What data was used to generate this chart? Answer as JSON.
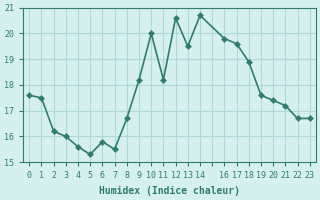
{
  "x": [
    0,
    1,
    2,
    3,
    4,
    5,
    6,
    7,
    8,
    9,
    10,
    11,
    12,
    13,
    14,
    16,
    17,
    18,
    19,
    20,
    21,
    22,
    23
  ],
  "y": [
    17.6,
    17.5,
    16.2,
    16.0,
    15.6,
    15.3,
    15.8,
    15.5,
    16.7,
    18.2,
    20.0,
    18.2,
    20.6,
    19.5,
    20.7,
    19.8,
    19.6,
    18.9,
    17.6,
    17.4,
    17.2,
    16.7,
    16.7
  ],
  "line_color": "#2e7d6e",
  "marker": "D",
  "marker_size": 3,
  "line_width": 1.2,
  "bg_color": "#d6f0f0",
  "grid_color": "#b0d8d8",
  "xlabel": "Humidex (Indice chaleur)",
  "ylabel": "",
  "title": "",
  "xlim": [
    -0.5,
    23.5
  ],
  "ylim": [
    15,
    21
  ],
  "yticks": [
    15,
    16,
    17,
    18,
    19,
    20,
    21
  ],
  "xticks": [
    0,
    1,
    2,
    3,
    4,
    5,
    6,
    7,
    8,
    9,
    10,
    11,
    12,
    13,
    14,
    15,
    16,
    17,
    18,
    19,
    20,
    21,
    22,
    23
  ],
  "xtick_labels": [
    "0",
    "1",
    "2",
    "3",
    "4",
    "5",
    "6",
    "7",
    "8",
    "9",
    "10",
    "11",
    "12",
    "13",
    "14",
    "",
    "16",
    "17",
    "18",
    "19",
    "20",
    "21",
    "22",
    "23"
  ],
  "tick_color": "#2e7d6e",
  "label_fontsize": 7,
  "tick_fontsize": 6
}
